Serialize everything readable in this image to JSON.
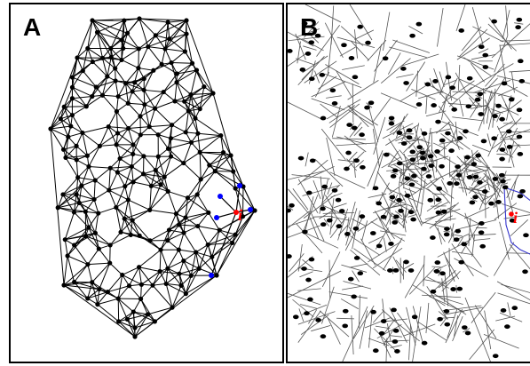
{
  "panels": [
    {
      "id": "A",
      "letter": "A",
      "node_label": "i"
    },
    {
      "id": "B",
      "letter": "B",
      "node_label": "i"
    }
  ],
  "colors": {
    "edge": "#000000",
    "node": "#000000",
    "neighbor": "#0000ff",
    "highlight": "#ff0000",
    "voronoi_edge": "#555555",
    "highlight_cell": "#3333cc"
  }
}
